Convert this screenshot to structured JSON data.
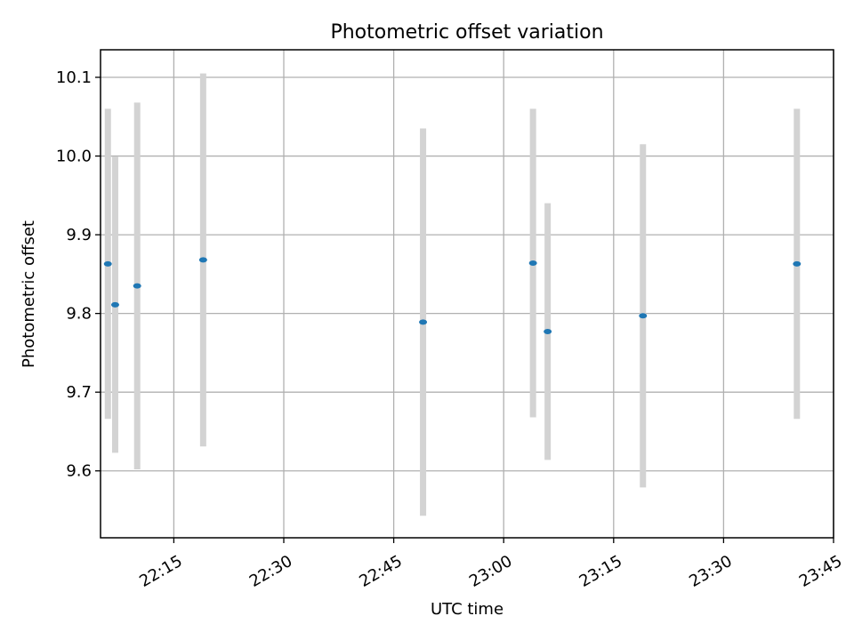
{
  "chart_data": {
    "type": "scatter",
    "title": "Photometric offset variation",
    "xlabel": "UTC time",
    "ylabel": "Photometric offset",
    "x_type": "time",
    "xlim": [
      "22:05",
      "23:45"
    ],
    "ylim": [
      9.515,
      10.135
    ],
    "x_ticks": [
      "22:15",
      "22:30",
      "22:45",
      "23:00",
      "23:15",
      "23:30",
      "23:45"
    ],
    "y_ticks": [
      9.6,
      9.7,
      9.8,
      9.9,
      10.0,
      10.1
    ],
    "y_tick_labels": [
      "9.6",
      "9.7",
      "9.8",
      "9.9",
      "10.0",
      "10.1"
    ],
    "grid": true,
    "series": [
      {
        "points": [
          {
            "x": "22:06",
            "y": 9.863,
            "err": 0.197
          },
          {
            "x": "22:07",
            "y": 9.811,
            "err": 0.188
          },
          {
            "x": "22:10",
            "y": 9.835,
            "err": 0.233
          },
          {
            "x": "22:19",
            "y": 9.868,
            "err": 0.237
          },
          {
            "x": "22:49",
            "y": 9.789,
            "err": 0.246
          },
          {
            "x": "23:04",
            "y": 9.864,
            "err": 0.196
          },
          {
            "x": "23:06",
            "y": 9.777,
            "err": 0.163
          },
          {
            "x": "23:19",
            "y": 9.797,
            "err": 0.218
          },
          {
            "x": "23:40",
            "y": 9.863,
            "err": 0.197
          }
        ]
      }
    ],
    "colors": {
      "marker": "#1f77b4",
      "errorbar": "#d3d3d3",
      "grid": "#b0b0b0",
      "axis": "#000000"
    }
  }
}
